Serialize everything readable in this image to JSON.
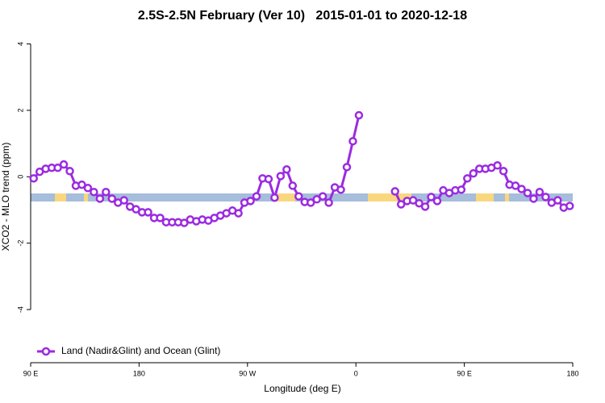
{
  "chart_data": {
    "type": "line",
    "title": "2.5S-2.5N February (Ver 10)   2015-01-01 to 2020-12-18",
    "xlabel": "Longitude (deg E)",
    "ylabel": "XCO2 - MLO trend (ppm)",
    "xlim": [
      90,
      540
    ],
    "ylim": [
      -5.6,
      4.4
    ],
    "xticks": [
      {
        "value": 90,
        "label": "90 E"
      },
      180,
      {
        "value": 270,
        "label": "90 W"
      },
      {
        "value": 360,
        "label": "0"
      },
      {
        "value": 450,
        "label": "90 E"
      },
      180
    ],
    "yticks": [
      -4,
      -2,
      0,
      2,
      4
    ],
    "legend": "bottom-left",
    "x": [
      92.5,
      97.5,
      102.5,
      107.5,
      112.5,
      117.5,
      122.5,
      127.5,
      132.5,
      137.5,
      142.5,
      147.5,
      152.5,
      157.5,
      162.5,
      167.5,
      172.5,
      177.5,
      182.5,
      187.5,
      192.5,
      197.5,
      202.5,
      207.5,
      212.5,
      217.5,
      222.5,
      227.5,
      232.5,
      237.5,
      242.5,
      247.5,
      252.5,
      257.5,
      262.5,
      267.5,
      272.5,
      277.5,
      282.5,
      287.5,
      292.5,
      297.5,
      302.5,
      307.5,
      312.5,
      317.5,
      322.5,
      327.5,
      332.5,
      337.5,
      342.5,
      347.5,
      352.5,
      357.5,
      362.5,
      367.5,
      372.5,
      377.5,
      382.5,
      387.5,
      392.5,
      397.5,
      402.5,
      407.5,
      412.5,
      417.5,
      422.5,
      427.5,
      432.5,
      437.5,
      442.5,
      447.5,
      452.5,
      457.5,
      462.5,
      467.5,
      472.5,
      477.5,
      482.5,
      487.5,
      492.5,
      497.5,
      502.5,
      507.5,
      512.5,
      517.5,
      522.5,
      527.5,
      532.5,
      537.5
    ],
    "series": [
      {
        "name": "Land (Nadir&Glint) and Ocean (Glint)",
        "color": "#9b2be0",
        "values": [
          -0.05,
          0.15,
          0.24,
          0.27,
          0.27,
          0.37,
          0.17,
          -0.27,
          -0.24,
          -0.34,
          -0.46,
          -0.66,
          -0.46,
          -0.66,
          -0.78,
          -0.71,
          -0.9,
          -0.98,
          -1.07,
          -1.07,
          -1.24,
          -1.24,
          -1.37,
          -1.37,
          -1.37,
          -1.39,
          -1.29,
          -1.34,
          -1.29,
          -1.32,
          -1.24,
          -1.17,
          -1.1,
          -1.02,
          -1.1,
          -0.78,
          -0.73,
          -0.59,
          -0.05,
          -0.07,
          -0.63,
          0.02,
          0.22,
          -0.27,
          -0.59,
          -0.76,
          -0.78,
          -0.68,
          -0.59,
          -0.78,
          -0.32,
          -0.39,
          0.29,
          1.07,
          1.85,
          null,
          null,
          null,
          null,
          null,
          -0.44,
          -0.83,
          -0.73,
          -0.71,
          -0.8,
          -0.9,
          -0.61,
          -0.73,
          -0.41,
          -0.49,
          -0.41,
          -0.39,
          -0.05,
          0.1,
          0.24,
          0.24,
          0.27,
          0.34,
          0.17,
          -0.24,
          -0.27,
          -0.37,
          -0.49,
          -0.66,
          -0.46,
          -0.61,
          -0.78,
          -0.71,
          -0.93,
          -0.88
        ]
      }
    ]
  }
}
